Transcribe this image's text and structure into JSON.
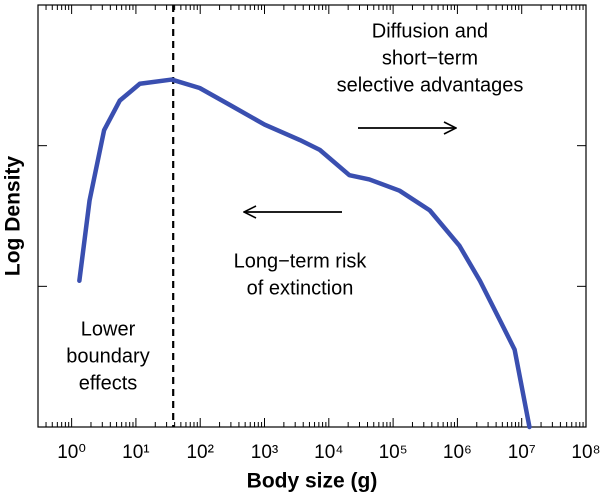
{
  "chart_data": {
    "type": "line",
    "xlabel": "Body size (g)",
    "ylabel": "Log Density",
    "xscale": "log",
    "xlim": [
      0.3,
      100000000
    ],
    "xticks": [
      {
        "value": 1,
        "label": "10⁰"
      },
      {
        "value": 10,
        "label": "10¹"
      },
      {
        "value": 100,
        "label": "10²"
      },
      {
        "value": 1000,
        "label": "10³"
      },
      {
        "value": 10000,
        "label": "10⁴"
      },
      {
        "value": 100000,
        "label": "10⁵"
      },
      {
        "value": 1000000,
        "label": "10⁶"
      },
      {
        "value": 10000000,
        "label": "10⁷"
      },
      {
        "value": 100000000,
        "label": "10⁸"
      }
    ],
    "ylim": [
      0,
      3
    ],
    "yticks": [
      1,
      2
    ],
    "reference_x": 38,
    "series": [
      {
        "color": "#3a4fb0",
        "x": [
          1.32,
          1.9,
          3.2,
          5.6,
          11.5,
          36,
          98,
          288,
          1000,
          3550,
          7240,
          20900,
          42700,
          126000,
          372000,
          1070000,
          2240000,
          4570000,
          7760000,
          13200000
        ],
        "values": [
          1.04,
          1.61,
          2.11,
          2.32,
          2.44,
          2.47,
          2.41,
          2.29,
          2.15,
          2.04,
          1.97,
          1.79,
          1.76,
          1.68,
          1.54,
          1.29,
          1.04,
          0.76,
          0.55,
          0.0
        ]
      }
    ],
    "annotations": [
      [
        "Diffusion and",
        "short−term",
        "selective advantages"
      ],
      [
        "Long−term risk",
        "of extinction"
      ],
      [
        "Lower",
        "boundary",
        "effects"
      ]
    ]
  }
}
